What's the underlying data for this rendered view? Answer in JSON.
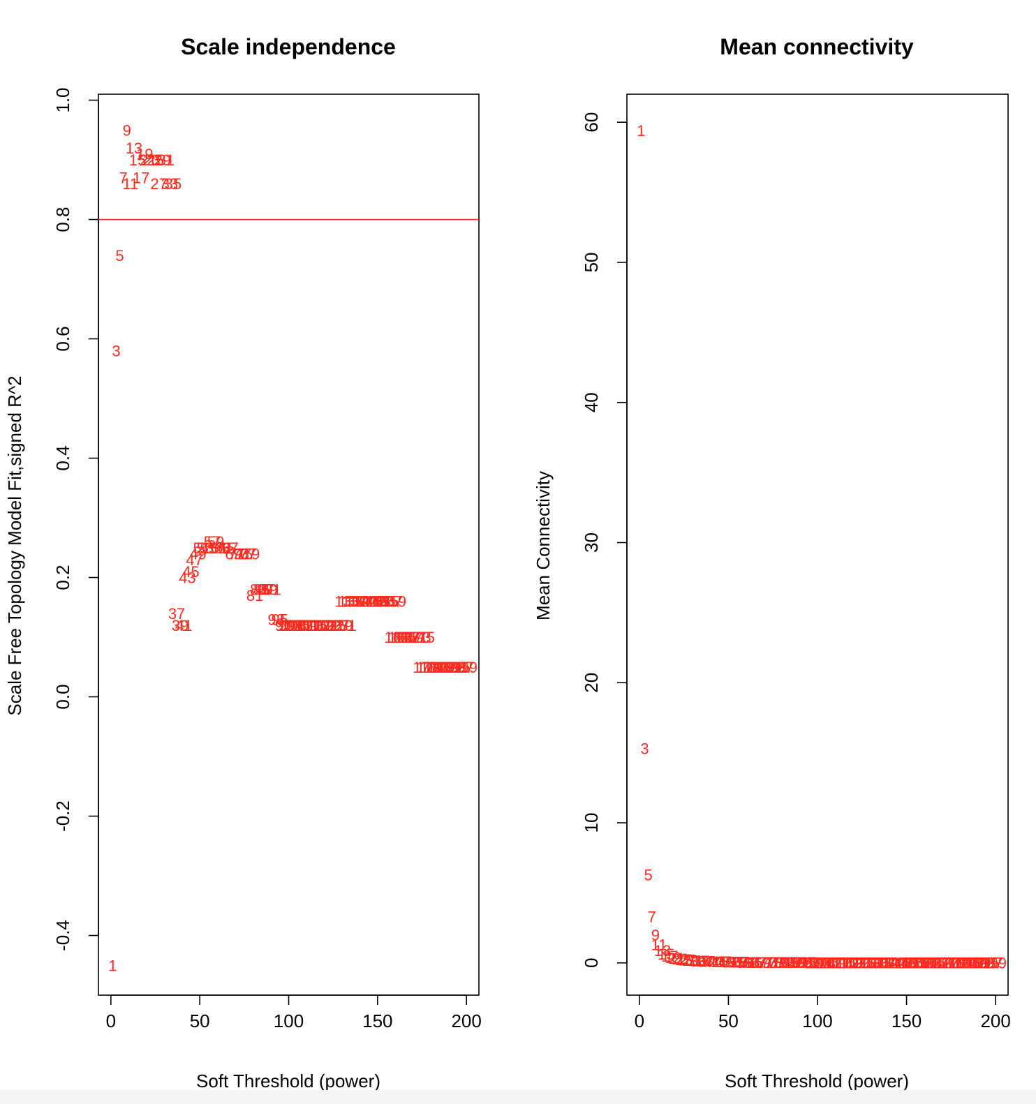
{
  "chart_data": [
    {
      "type": "scatter",
      "marker": "text-labels",
      "title": "Scale independence",
      "xlabel": "Soft Threshold (power)",
      "ylabel": "Scale Free Topology Model Fit,signed R^2",
      "xlim": [
        -7,
        207
      ],
      "ylim": [
        -0.5,
        1.01
      ],
      "xticks": [
        0,
        50,
        100,
        150,
        200
      ],
      "yticks": [
        -0.4,
        -0.2,
        0.0,
        0.2,
        0.4,
        0.6,
        0.8,
        1.0
      ],
      "xtick_labels": [
        "0",
        "50",
        "100",
        "150",
        "200"
      ],
      "ytick_labels": [
        "-0.4",
        "-0.2",
        "0.0",
        "0.2",
        "0.4",
        "0.6",
        "0.8",
        "1.0"
      ],
      "hline": 0.8,
      "color": "#ff2a1f",
      "x": [
        1,
        3,
        5,
        7,
        9,
        11,
        13,
        15,
        17,
        19,
        21,
        23,
        25,
        27,
        29,
        31,
        33,
        35,
        37,
        39,
        41,
        43,
        45,
        47,
        49,
        51,
        53,
        55,
        57,
        59,
        61,
        63,
        65,
        67,
        69,
        71,
        73,
        75,
        77,
        79,
        81,
        83,
        85,
        87,
        89,
        91,
        93,
        95,
        97,
        99,
        101,
        103,
        105,
        107,
        109,
        111,
        113,
        115,
        117,
        119,
        121,
        123,
        125,
        127,
        129,
        131,
        133,
        135,
        137,
        139,
        141,
        143,
        145,
        147,
        149,
        151,
        153,
        155,
        157,
        159,
        161,
        163,
        165,
        167,
        169,
        171,
        173,
        175,
        177,
        179,
        181,
        183,
        185,
        187,
        189,
        191,
        193,
        195,
        197,
        199
      ],
      "y": [
        -0.45,
        0.58,
        0.74,
        0.87,
        0.95,
        0.86,
        0.92,
        0.9,
        0.87,
        0.91,
        0.9,
        0.9,
        0.9,
        0.86,
        0.9,
        0.9,
        0.86,
        0.86,
        0.14,
        0.12,
        0.12,
        0.2,
        0.21,
        0.23,
        0.24,
        0.25,
        0.25,
        0.25,
        0.26,
        0.26,
        0.25,
        0.25,
        0.25,
        0.25,
        0.24,
        0.24,
        0.24,
        0.24,
        0.24,
        0.24,
        0.17,
        0.18,
        0.18,
        0.18,
        0.18,
        0.18,
        0.13,
        0.13,
        0.12,
        0.12,
        0.12,
        0.12,
        0.12,
        0.12,
        0.12,
        0.12,
        0.12,
        0.12,
        0.12,
        0.12,
        0.12,
        0.12,
        0.12,
        0.12,
        0.12,
        0.12,
        0.16,
        0.16,
        0.16,
        0.16,
        0.16,
        0.16,
        0.16,
        0.16,
        0.16,
        0.16,
        0.16,
        0.16,
        0.16,
        0.16,
        0.1,
        0.1,
        0.1,
        0.1,
        0.1,
        0.1,
        0.1,
        0.1,
        0.05,
        0.05,
        0.05,
        0.05,
        0.05,
        0.05,
        0.05,
        0.05,
        0.05,
        0.05,
        0.05,
        0.05
      ]
    },
    {
      "type": "scatter",
      "marker": "text-labels",
      "title": "Mean connectivity",
      "xlabel": "Soft Threshold (power)",
      "ylabel": "Mean Connectivity",
      "xlim": [
        -7,
        207
      ],
      "ylim": [
        -2.3,
        62
      ],
      "xticks": [
        0,
        50,
        100,
        150,
        200
      ],
      "yticks": [
        0,
        10,
        20,
        30,
        40,
        50,
        60
      ],
      "xtick_labels": [
        "0",
        "50",
        "100",
        "150",
        "200"
      ],
      "ytick_labels": [
        "0",
        "10",
        "20",
        "30",
        "40",
        "50",
        "60"
      ],
      "color": "#ff2a1f",
      "x": [
        1,
        3,
        5,
        7,
        9,
        11,
        13,
        15,
        17,
        19,
        21,
        23,
        25,
        27,
        29,
        31,
        33,
        35,
        37,
        39,
        41,
        43,
        45,
        47,
        49,
        51,
        53,
        55,
        57,
        59,
        61,
        63,
        65,
        67,
        69,
        71,
        73,
        75,
        77,
        79,
        81,
        83,
        85,
        87,
        89,
        91,
        93,
        95,
        97,
        99,
        101,
        103,
        105,
        107,
        109,
        111,
        113,
        115,
        117,
        119,
        121,
        123,
        125,
        127,
        129,
        131,
        133,
        135,
        137,
        139,
        141,
        143,
        145,
        147,
        149,
        151,
        153,
        155,
        157,
        159,
        161,
        163,
        165,
        167,
        169,
        171,
        173,
        175,
        177,
        179,
        181,
        183,
        185,
        187,
        189,
        191,
        193,
        195,
        197,
        199
      ],
      "y": [
        59.4,
        15.3,
        6.3,
        3.3,
        2.0,
        1.3,
        0.9,
        0.65,
        0.5,
        0.4,
        0.33,
        0.28,
        0.24,
        0.21,
        0.18,
        0.16,
        0.14,
        0.13,
        0.12,
        0.11,
        0.1,
        0.09,
        0.08,
        0.08,
        0.07,
        0.07,
        0.06,
        0.06,
        0.06,
        0.05,
        0.05,
        0.05,
        0.05,
        0.04,
        0.04,
        0.04,
        0.04,
        0.04,
        0.04,
        0.03,
        0.03,
        0.03,
        0.03,
        0.03,
        0.03,
        0.03,
        0.03,
        0.03,
        0.02,
        0.02,
        0.02,
        0.02,
        0.02,
        0.02,
        0.02,
        0.02,
        0.02,
        0.02,
        0.02,
        0.02,
        0.02,
        0.02,
        0.02,
        0.02,
        0.02,
        0.01,
        0.01,
        0.01,
        0.01,
        0.01,
        0.01,
        0.01,
        0.01,
        0.01,
        0.01,
        0.01,
        0.01,
        0.01,
        0.01,
        0.01,
        0.01,
        0.01,
        0.01,
        0.01,
        0.01,
        0.01,
        0.01,
        0.01,
        0.01,
        0.01,
        0.01,
        0.01,
        0.01,
        0.01,
        0.01,
        0.01,
        0.01,
        0.01,
        0.01,
        0.01
      ]
    }
  ]
}
